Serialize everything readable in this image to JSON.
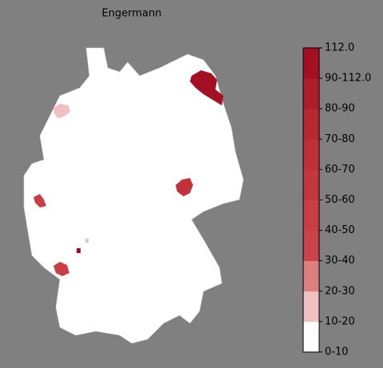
{
  "title": "Engermann",
  "legend": {
    "labels": [
      "0-10",
      "10-20",
      "20-30",
      "30-40",
      "40-50",
      "50-60",
      "60-70",
      "70-80",
      "80-90",
      "90-112.0",
      "112.0"
    ],
    "colors": [
      "#ffffff",
      "#f0c0c0",
      "#dc7f7f",
      "#c9444a",
      "#c73e44",
      "#c2373e",
      "#bd3038",
      "#b52731",
      "#ad1e2b",
      "#a30f23"
    ]
  }
}
